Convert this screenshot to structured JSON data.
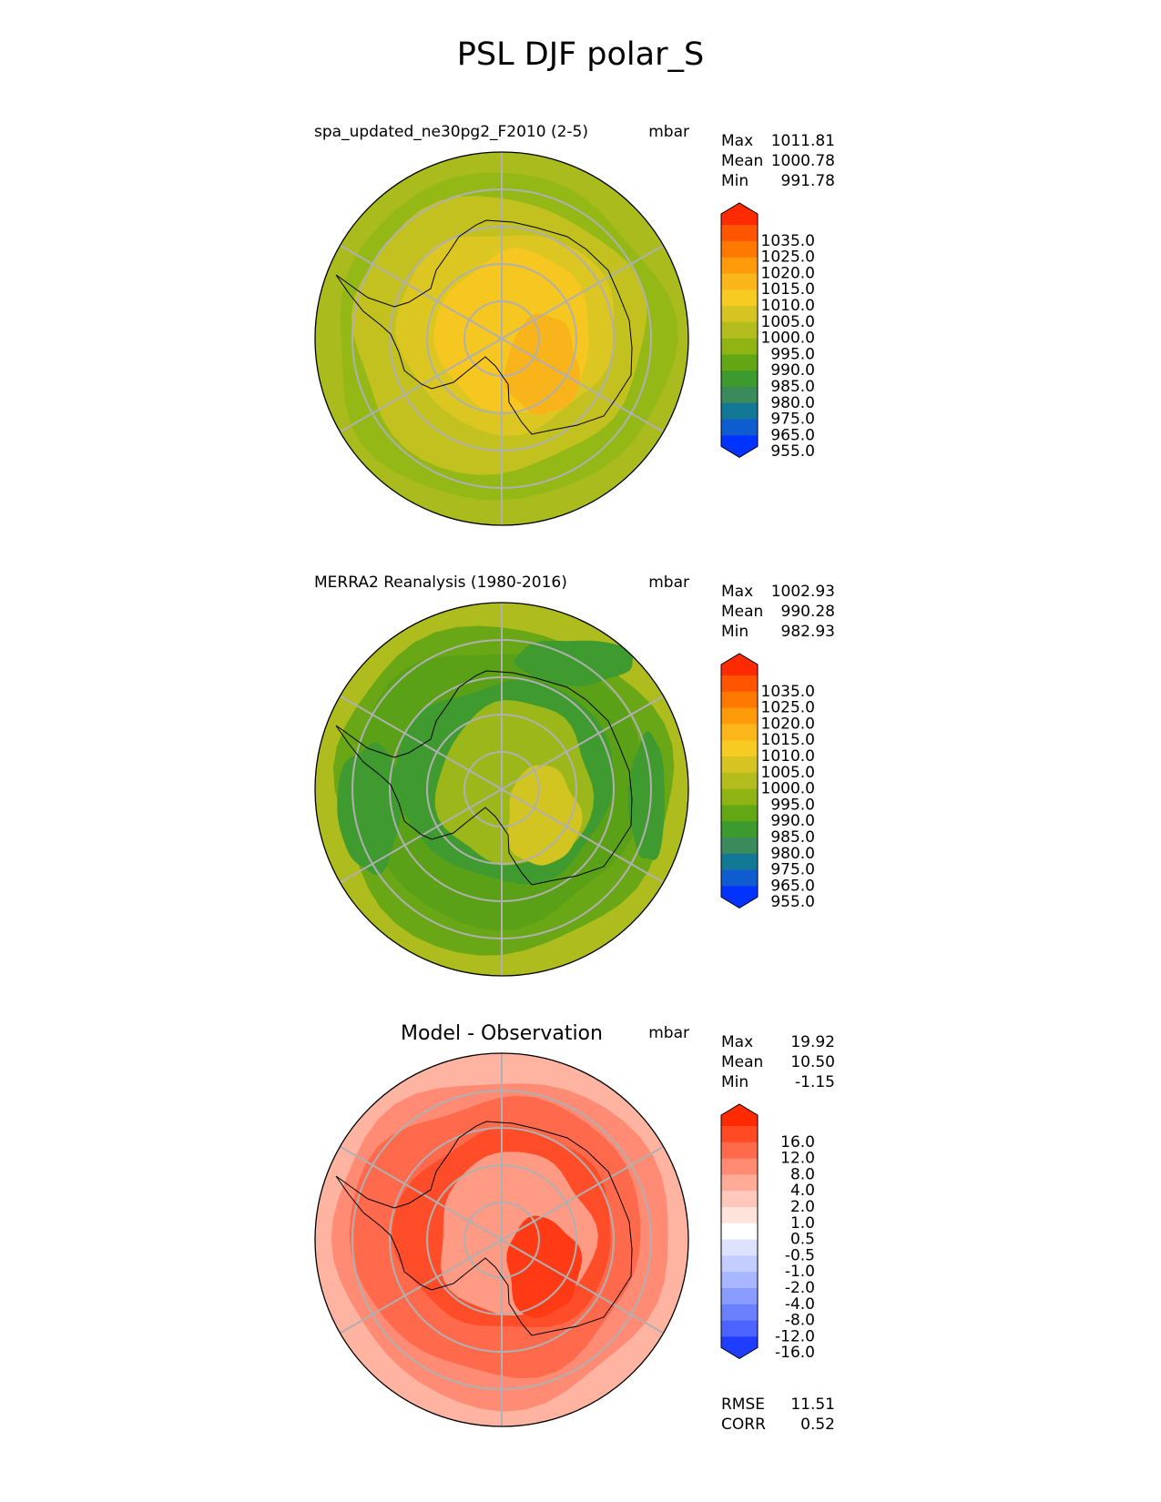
{
  "title": "PSL DJF polar_S",
  "colors": {
    "grid": "#b0b0b0",
    "coast": "#000000"
  },
  "panels": [
    {
      "id": "test",
      "title": "spa_updated_ne30pg2_F2010 (2-5)",
      "units": "mbar",
      "stats": [
        {
          "label": "Max",
          "value": "1011.81"
        },
        {
          "label": "Mean",
          "value": "1000.78"
        },
        {
          "label": "Min",
          "value": "991.78"
        }
      ],
      "colorbar_labels": [
        "1035.0",
        "1025.0",
        "1020.0",
        "1015.0",
        "1010.0",
        "1005.0",
        "1000.0",
        "995.0",
        "990.0",
        "985.0",
        "980.0",
        "975.0",
        "965.0",
        "955.0"
      ],
      "colorbar_colors": [
        "#ff2a00",
        "#ff5500",
        "#ff7800",
        "#ff9a0a",
        "#fbb619",
        "#f7cb22",
        "#d6c422",
        "#b3bd1e",
        "#8fb414",
        "#63a814",
        "#3d9a2e",
        "#3b8a5c",
        "#137896",
        "#0f5cd1",
        "#0033ff"
      ],
      "fill_levels": [
        {
          "name": "outer-ring",
          "color": "#a9bb1d"
        },
        {
          "name": "band-green",
          "color": "#94b816"
        },
        {
          "name": "mid-ring",
          "color": "#c3c11f"
        },
        {
          "name": "inner-plateau",
          "color": "#dcc622"
        },
        {
          "name": "interior-yellow",
          "color": "#f6c621"
        },
        {
          "name": "core-orange",
          "color": "#f9b31b"
        }
      ]
    },
    {
      "id": "reference",
      "title": "MERRA2 Reanalysis (1980-2016)",
      "units": "mbar",
      "stats": [
        {
          "label": "Max",
          "value": "1002.93"
        },
        {
          "label": "Mean",
          "value": "990.28"
        },
        {
          "label": "Min",
          "value": "982.93"
        }
      ],
      "colorbar_labels": [
        "1035.0",
        "1025.0",
        "1020.0",
        "1015.0",
        "1010.0",
        "1005.0",
        "1000.0",
        "995.0",
        "990.0",
        "985.0",
        "980.0",
        "975.0",
        "965.0",
        "955.0"
      ],
      "colorbar_colors": [
        "#ff2a00",
        "#ff5500",
        "#ff7800",
        "#ff9a0a",
        "#fbb619",
        "#f7cb22",
        "#d6c422",
        "#b3bd1e",
        "#8fb414",
        "#63a814",
        "#3d9a2e",
        "#3b8a5c",
        "#137896",
        "#0f5cd1",
        "#0033ff"
      ],
      "fill_levels": [
        {
          "name": "outer-ring",
          "color": "#aebd1d"
        },
        {
          "name": "band-green",
          "color": "#6aa716"
        },
        {
          "name": "mid-ring",
          "color": "#5aa117"
        },
        {
          "name": "dark-patches",
          "color": "#3f9a2f"
        },
        {
          "name": "interior-light",
          "color": "#9cb71a"
        },
        {
          "name": "core-yellow",
          "color": "#d2c521"
        }
      ]
    },
    {
      "id": "diff",
      "title": "Model - Observation",
      "units": "mbar",
      "stats": [
        {
          "label": "Max",
          "value": "19.92"
        },
        {
          "label": "Mean",
          "value": "10.50"
        },
        {
          "label": "Min",
          "value": "-1.15"
        }
      ],
      "colorbar_labels": [
        "16.0",
        "12.0",
        "8.0",
        "4.0",
        "2.0",
        "1.0",
        "0.5",
        "-0.5",
        "-1.0",
        "-2.0",
        "-4.0",
        "-8.0",
        "-12.0",
        "-16.0"
      ],
      "colorbar_colors": [
        "#ff2a00",
        "#ff4a24",
        "#ff6a4c",
        "#ff8a72",
        "#ffab99",
        "#ffc8bd",
        "#ffe3dc",
        "#ffffff",
        "#dde3ff",
        "#c3cdff",
        "#a7b6ff",
        "#8a9cff",
        "#6b80ff",
        "#4c63ff",
        "#1f3dff"
      ],
      "fill_levels": [
        {
          "name": "outer-ring",
          "color": "#ffb3a1"
        },
        {
          "name": "band",
          "color": "#ff8b74"
        },
        {
          "name": "mid-ring",
          "color": "#ff6a4c"
        },
        {
          "name": "inner",
          "color": "#ff4d2a"
        },
        {
          "name": "interior-light",
          "color": "#ff9a85"
        },
        {
          "name": "core",
          "color": "#ff3a14"
        }
      ],
      "metrics": [
        {
          "label": "RMSE",
          "value": "11.51"
        },
        {
          "label": "CORR",
          "value": "0.52"
        }
      ]
    }
  ]
}
